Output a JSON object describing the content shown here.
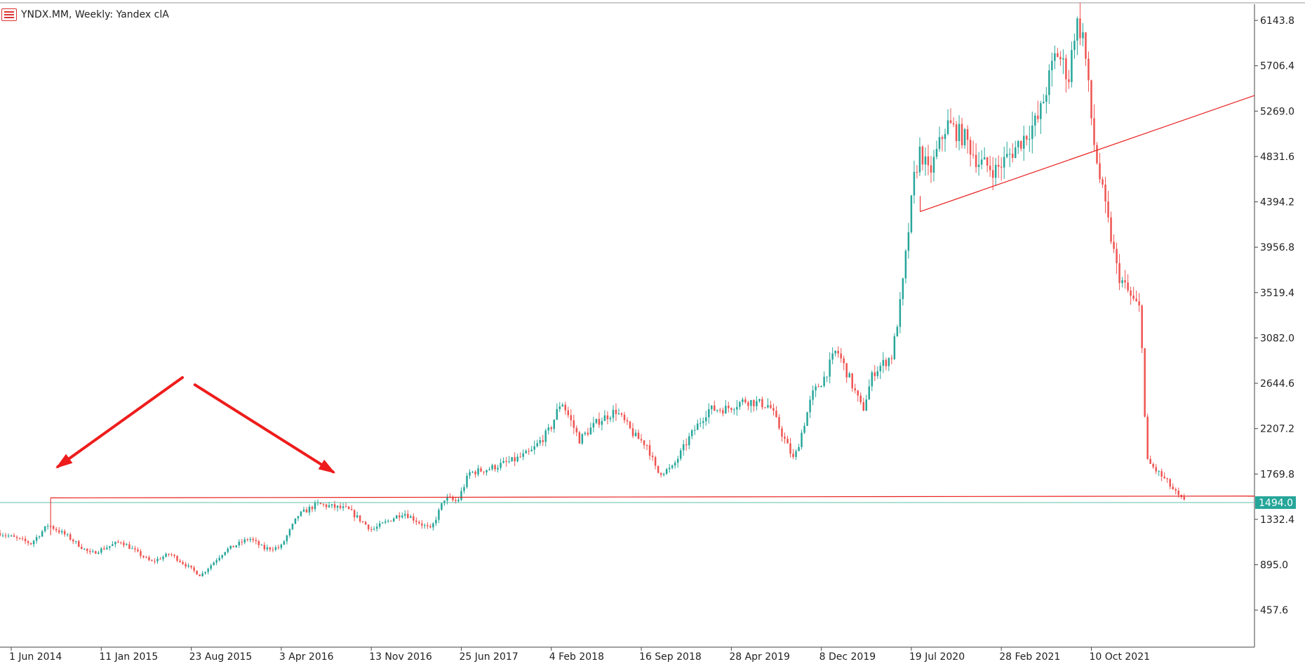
{
  "window": {
    "title": "YNDX.MM, Weekly:  Yandex clA",
    "icon": "chart-window-icon"
  },
  "colors": {
    "bull": "#26a69a",
    "bear": "#ef5350",
    "trendline": "#e8201e",
    "price_line": "#5cc1a8",
    "price_badge": "#26a69a",
    "arrow": "#ee1c1c",
    "axis": "#444444"
  },
  "chart_data": {
    "type": "candlestick",
    "timeframe": "Weekly",
    "y_ticks": [
      6143.8,
      5706.4,
      5269.0,
      4831.6,
      4394.2,
      3956.8,
      3519.4,
      3082.0,
      2644.6,
      2207.2,
      1769.8,
      1332.4,
      895.0,
      457.6
    ],
    "x_ticks": [
      "1 Jun 2014",
      "11 Jan 2015",
      "23 Aug 2015",
      "3 Apr 2016",
      "13 Nov 2016",
      "25 Jun 2017",
      "4 Feb 2018",
      "16 Sep 2018",
      "28 Apr 2019",
      "8 Dec 2019",
      "19 Jul 2020",
      "28 Feb 2021",
      "10 Oct 2021"
    ],
    "x_tick_labels_shown": [
      "1 Jun 2014",
      "11 Jan 2015",
      "23 Aug 2015",
      "3 Apr 2016",
      "13 Nov 2016",
      "25 Jun 2017",
      "4 Feb 2018",
      "16 Sep 2018",
      "28 Apr 2019",
      "8 Dec 2019",
      "19 Jul 2020",
      "28 Feb 2021",
      "10 Oct 2021"
    ],
    "x_range": [
      "2014-05-04",
      "2022-11-20"
    ],
    "y_range": [
      100,
      6300
    ],
    "current_price": 1494.0,
    "current_price_label": "1494.0",
    "anchors": [
      [
        "2014-05-04",
        1200
      ],
      [
        "2014-07-20",
        1100
      ],
      [
        "2014-09-01",
        1280
      ],
      [
        "2014-10-15",
        1180
      ],
      [
        "2014-12-15",
        1000
      ],
      [
        "2015-03-01",
        1120
      ],
      [
        "2015-05-15",
        920
      ],
      [
        "2015-07-01",
        1000
      ],
      [
        "2015-09-15",
        790
      ],
      [
        "2015-11-15",
        1030
      ],
      [
        "2016-01-15",
        1150
      ],
      [
        "2016-02-20",
        1050
      ],
      [
        "2016-04-01",
        1060
      ],
      [
        "2016-05-15",
        1370
      ],
      [
        "2016-07-01",
        1480
      ],
      [
        "2016-09-15",
        1430
      ],
      [
        "2016-11-15",
        1230
      ],
      [
        "2017-02-01",
        1400
      ],
      [
        "2017-04-10",
        1230
      ],
      [
        "2017-05-15",
        1540
      ],
      [
        "2017-06-15",
        1500
      ],
      [
        "2017-07-15",
        1780
      ],
      [
        "2017-09-01",
        1820
      ],
      [
        "2017-11-01",
        1900
      ],
      [
        "2017-12-15",
        1980
      ],
      [
        "2018-02-01",
        2200
      ],
      [
        "2018-03-01",
        2480
      ],
      [
        "2018-04-15",
        2100
      ],
      [
        "2018-06-01",
        2280
      ],
      [
        "2018-07-15",
        2380
      ],
      [
        "2018-09-01",
        2130
      ],
      [
        "2018-10-01",
        2050
      ],
      [
        "2018-10-25",
        1780
      ],
      [
        "2018-12-01",
        1820
      ],
      [
        "2019-01-15",
        2130
      ],
      [
        "2019-03-01",
        2390
      ],
      [
        "2019-04-15",
        2400
      ],
      [
        "2019-06-01",
        2480
      ],
      [
        "2019-08-01",
        2430
      ],
      [
        "2019-09-10",
        2080
      ],
      [
        "2019-10-01",
        1900
      ],
      [
        "2019-11-15",
        2530
      ],
      [
        "2019-12-15",
        2700
      ],
      [
        "2020-01-15",
        2970
      ],
      [
        "2020-02-15",
        2700
      ],
      [
        "2020-03-20",
        2380
      ],
      [
        "2020-04-15",
        2750
      ],
      [
        "2020-06-01",
        2910
      ],
      [
        "2020-06-25",
        3500
      ],
      [
        "2020-07-25",
        4600
      ],
      [
        "2020-08-10",
        4900
      ],
      [
        "2020-09-01",
        4650
      ],
      [
        "2020-10-15",
        5150
      ],
      [
        "2020-12-01",
        5000
      ],
      [
        "2021-01-01",
        4780
      ],
      [
        "2021-02-15",
        4700
      ],
      [
        "2021-04-01",
        4900
      ],
      [
        "2021-06-01",
        5200
      ],
      [
        "2021-07-15",
        5850
      ],
      [
        "2021-08-15",
        5600
      ],
      [
        "2021-09-01",
        6130
      ],
      [
        "2021-09-20",
        6000
      ],
      [
        "2021-10-15",
        5000
      ],
      [
        "2021-11-01",
        4600
      ],
      [
        "2021-12-15",
        3700
      ],
      [
        "2022-01-20",
        3450
      ],
      [
        "2022-02-10",
        3350
      ],
      [
        "2022-02-24",
        1900
      ],
      [
        "2022-04-15",
        1700
      ],
      [
        "2022-05-15",
        1550
      ],
      [
        "2022-06-01",
        1494
      ]
    ],
    "support_line": {
      "from": [
        "2014-09-07",
        1540
      ],
      "to": [
        "2022-11-20",
        1557
      ]
    },
    "upper_trendline": {
      "from": [
        "2020-08-10",
        4300
      ],
      "to": [
        "2022-11-20",
        5420
      ]
    },
    "annotations": [
      {
        "type": "arrow",
        "from": [
          "2015-08-01",
          2700
        ],
        "to": [
          "2014-09-25",
          1840
        ]
      },
      {
        "type": "arrow",
        "from": [
          "2015-09-01",
          2630
        ],
        "to": [
          "2016-08-10",
          1790
        ]
      }
    ]
  }
}
